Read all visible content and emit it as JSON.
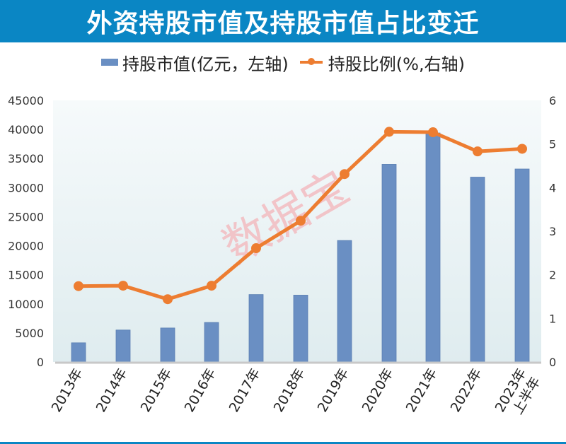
{
  "header": {
    "title": "外资持股市值及持股市值占比变迁"
  },
  "legend": {
    "bar_label": "持股市值(亿元，左轴)",
    "line_label": "持股比例(%,右轴)"
  },
  "watermark": "数据宝",
  "colors": {
    "title_bg": "#0a86c4",
    "bar": "#6a8fc3",
    "line": "#ed7d31",
    "watermark": "#f2b8bd"
  },
  "chart_data": {
    "type": "bar+line",
    "title": "外资持股市值及持股市值占比变迁",
    "categories": [
      "2013年",
      "2014年",
      "2015年",
      "2016年",
      "2017年",
      "2018年",
      "2019年",
      "2020年",
      "2021年",
      "2022年",
      "2023年上半年"
    ],
    "series": [
      {
        "name": "持股市值(亿元，左轴)",
        "type": "bar",
        "axis": "left",
        "values": [
          3300,
          5500,
          5850,
          6800,
          11600,
          11500,
          20900,
          34000,
          39400,
          31800,
          33200
        ]
      },
      {
        "name": "持股比例(%,右轴)",
        "type": "line",
        "axis": "right",
        "values": [
          1.74,
          1.75,
          1.44,
          1.75,
          2.61,
          3.24,
          4.31,
          5.28,
          5.27,
          4.83,
          4.89
        ]
      }
    ],
    "left_axis": {
      "ylim": [
        0,
        45000
      ],
      "ticks": [
        "0",
        "5000",
        "10000",
        "15000",
        "20000",
        "25000",
        "30000",
        "35000",
        "40000",
        "45000"
      ]
    },
    "right_axis": {
      "ylim": [
        0,
        6
      ],
      "ticks": [
        "0",
        "1",
        "2",
        "3",
        "4",
        "5",
        "6"
      ]
    },
    "xlabel": "",
    "ylabel": "",
    "grid": false,
    "legend_position": "top"
  }
}
